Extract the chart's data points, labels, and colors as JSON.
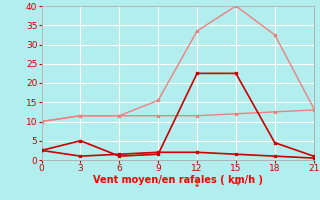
{
  "xlabel": "Vent moyen/en rafales ( km/h )",
  "xlabel_color": "#ff0000",
  "background_color": "#b2eeee",
  "grid_color": "#c8e8e8",
  "xlim": [
    0,
    21
  ],
  "ylim": [
    0,
    40
  ],
  "xticks": [
    0,
    3,
    6,
    9,
    12,
    15,
    18,
    21
  ],
  "yticks": [
    0,
    5,
    10,
    15,
    20,
    25,
    30,
    35,
    40
  ],
  "line1_light_gust": {
    "x": [
      0,
      3,
      6,
      9,
      12,
      15,
      18,
      21
    ],
    "y": [
      10,
      11.5,
      11.5,
      15.5,
      33.5,
      40,
      32.5,
      13.5
    ],
    "color": "#f08080",
    "marker": "s",
    "markersize": 2,
    "linewidth": 1.0
  },
  "line2_light_mean": {
    "x": [
      0,
      3,
      6,
      9,
      12,
      15,
      18,
      21
    ],
    "y": [
      10,
      11.5,
      11.5,
      11.5,
      11.5,
      12.0,
      12.5,
      13.0
    ],
    "color": "#f08080",
    "marker": "s",
    "markersize": 2,
    "linewidth": 1.0,
    "linestyle": "-"
  },
  "line3_dark_main": {
    "x": [
      0,
      3,
      6,
      9,
      12,
      15,
      18,
      21
    ],
    "y": [
      2.5,
      5.0,
      1.0,
      1.5,
      22.5,
      22.5,
      4.5,
      1.0
    ],
    "color": "#cc0000",
    "marker": "s",
    "markersize": 2,
    "linewidth": 1.2
  },
  "line4_dark_low": {
    "x": [
      0,
      3,
      6,
      9,
      12,
      15,
      18,
      21
    ],
    "y": [
      2.5,
      1.0,
      1.5,
      2.0,
      2.0,
      1.5,
      1.0,
      0.5
    ],
    "color": "#cc0000",
    "marker": "s",
    "markersize": 2,
    "linewidth": 1.2,
    "linestyle": "-"
  },
  "arrow1": {
    "x": 12,
    "text": "↓",
    "color": "#ff0000"
  },
  "arrow2": {
    "x": 15,
    "text": "→",
    "color": "#ff0000"
  }
}
